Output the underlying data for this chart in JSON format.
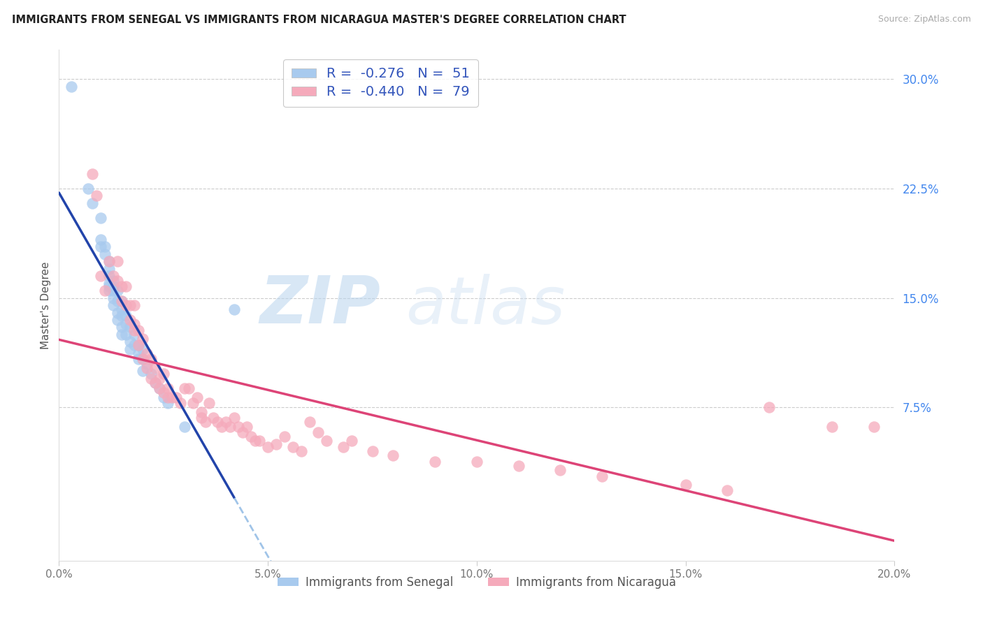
{
  "title": "IMMIGRANTS FROM SENEGAL VS IMMIGRANTS FROM NICARAGUA MASTER'S DEGREE CORRELATION CHART",
  "source": "Source: ZipAtlas.com",
  "ylabel": "Master's Degree",
  "right_yticks": [
    "30.0%",
    "22.5%",
    "15.0%",
    "7.5%"
  ],
  "right_ytick_vals": [
    0.3,
    0.225,
    0.15,
    0.075
  ],
  "xmin": 0.0,
  "xmax": 0.2,
  "ymin": -0.03,
  "ymax": 0.32,
  "color_blue": "#A8CAEE",
  "color_pink": "#F5AABB",
  "trendline_blue": "#2244AA",
  "trendline_pink": "#DD4477",
  "trendline_blue_dashed": "#A0C4E8",
  "legend_r_color": "#4466CC",
  "legend_n_color": "#4466CC",
  "senegal_x": [
    0.003,
    0.007,
    0.008,
    0.01,
    0.01,
    0.01,
    0.011,
    0.011,
    0.012,
    0.012,
    0.012,
    0.012,
    0.012,
    0.012,
    0.013,
    0.013,
    0.013,
    0.013,
    0.013,
    0.014,
    0.014,
    0.014,
    0.014,
    0.015,
    0.015,
    0.015,
    0.015,
    0.015,
    0.016,
    0.016,
    0.016,
    0.017,
    0.017,
    0.017,
    0.018,
    0.018,
    0.019,
    0.019,
    0.019,
    0.02,
    0.02,
    0.02,
    0.021,
    0.022,
    0.023,
    0.024,
    0.025,
    0.026,
    0.03,
    0.042
  ],
  "senegal_y": [
    0.295,
    0.225,
    0.215,
    0.205,
    0.19,
    0.185,
    0.185,
    0.18,
    0.175,
    0.17,
    0.165,
    0.16,
    0.158,
    0.155,
    0.162,
    0.158,
    0.155,
    0.15,
    0.145,
    0.155,
    0.148,
    0.14,
    0.135,
    0.148,
    0.142,
    0.138,
    0.13,
    0.125,
    0.138,
    0.132,
    0.125,
    0.13,
    0.12,
    0.115,
    0.125,
    0.118,
    0.118,
    0.112,
    0.108,
    0.115,
    0.108,
    0.1,
    0.105,
    0.098,
    0.092,
    0.088,
    0.082,
    0.078,
    0.062,
    0.142
  ],
  "nicaragua_x": [
    0.008,
    0.009,
    0.01,
    0.011,
    0.012,
    0.013,
    0.014,
    0.014,
    0.015,
    0.015,
    0.016,
    0.016,
    0.017,
    0.017,
    0.018,
    0.018,
    0.018,
    0.019,
    0.019,
    0.02,
    0.02,
    0.021,
    0.021,
    0.022,
    0.022,
    0.023,
    0.023,
    0.024,
    0.024,
    0.025,
    0.025,
    0.026,
    0.026,
    0.027,
    0.028,
    0.029,
    0.03,
    0.031,
    0.032,
    0.033,
    0.034,
    0.034,
    0.035,
    0.036,
    0.037,
    0.038,
    0.039,
    0.04,
    0.041,
    0.042,
    0.043,
    0.044,
    0.045,
    0.046,
    0.047,
    0.048,
    0.05,
    0.052,
    0.054,
    0.056,
    0.058,
    0.06,
    0.062,
    0.064,
    0.068,
    0.07,
    0.075,
    0.08,
    0.09,
    0.1,
    0.11,
    0.12,
    0.13,
    0.15,
    0.16,
    0.17,
    0.185,
    0.195
  ],
  "nicaragua_y": [
    0.235,
    0.22,
    0.165,
    0.155,
    0.175,
    0.165,
    0.175,
    0.162,
    0.158,
    0.148,
    0.158,
    0.145,
    0.145,
    0.135,
    0.145,
    0.132,
    0.128,
    0.128,
    0.118,
    0.122,
    0.108,
    0.112,
    0.102,
    0.108,
    0.095,
    0.102,
    0.092,
    0.095,
    0.088,
    0.098,
    0.085,
    0.088,
    0.082,
    0.082,
    0.082,
    0.078,
    0.088,
    0.088,
    0.078,
    0.082,
    0.072,
    0.068,
    0.065,
    0.078,
    0.068,
    0.065,
    0.062,
    0.065,
    0.062,
    0.068,
    0.062,
    0.058,
    0.062,
    0.055,
    0.052,
    0.052,
    0.048,
    0.05,
    0.055,
    0.048,
    0.045,
    0.065,
    0.058,
    0.052,
    0.048,
    0.052,
    0.045,
    0.042,
    0.038,
    0.038,
    0.035,
    0.032,
    0.028,
    0.022,
    0.018,
    0.075,
    0.062,
    0.062
  ]
}
